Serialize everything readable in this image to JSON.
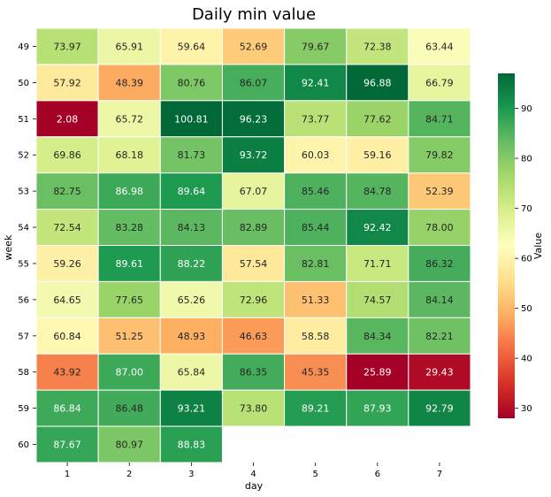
{
  "chart_data": {
    "type": "heatmap",
    "title": "Daily min value",
    "xlabel": "day",
    "ylabel": "week",
    "x_categories": [
      "1",
      "2",
      "3",
      "4",
      "5",
      "6",
      "7"
    ],
    "y_categories": [
      "49",
      "50",
      "51",
      "52",
      "53",
      "54",
      "55",
      "56",
      "57",
      "58",
      "59",
      "60"
    ],
    "values": [
      [
        73.97,
        65.91,
        59.64,
        52.69,
        79.67,
        72.38,
        63.44
      ],
      [
        57.92,
        48.39,
        80.76,
        86.07,
        92.41,
        96.88,
        66.79
      ],
      [
        2.08,
        65.72,
        100.81,
        96.23,
        73.77,
        77.62,
        84.71
      ],
      [
        69.86,
        68.18,
        81.73,
        93.72,
        60.03,
        59.16,
        79.82
      ],
      [
        82.75,
        86.98,
        89.64,
        67.07,
        85.46,
        84.78,
        52.39
      ],
      [
        72.54,
        83.28,
        84.13,
        82.89,
        85.44,
        92.42,
        78.0
      ],
      [
        59.26,
        89.61,
        88.22,
        57.54,
        82.81,
        71.71,
        86.32
      ],
      [
        64.65,
        77.65,
        65.26,
        72.96,
        51.33,
        74.57,
        84.14
      ],
      [
        60.84,
        51.25,
        48.93,
        46.63,
        58.58,
        84.34,
        82.21
      ],
      [
        43.92,
        87.0,
        65.84,
        86.35,
        45.35,
        25.89,
        29.43
      ],
      [
        86.84,
        86.48,
        93.21,
        73.8,
        89.21,
        87.93,
        92.79
      ],
      [
        87.67,
        80.97,
        88.83,
        null,
        null,
        null,
        null
      ]
    ],
    "cell_labels": [
      [
        "73.97",
        "65.91",
        "59.64",
        "52.69",
        "79.67",
        "72.38",
        "63.44"
      ],
      [
        "57.92",
        "48.39",
        "80.76",
        "86.07",
        "92.41",
        "96.88",
        "66.79"
      ],
      [
        "2.08",
        "65.72",
        "100.81",
        "96.23",
        "73.77",
        "77.62",
        "84.71"
      ],
      [
        "69.86",
        "68.18",
        "81.73",
        "93.72",
        "60.03",
        "59.16",
        "79.82"
      ],
      [
        "82.75",
        "86.98",
        "89.64",
        "67.07",
        "85.46",
        "84.78",
        "52.39"
      ],
      [
        "72.54",
        "83.28",
        "84.13",
        "82.89",
        "85.44",
        "92.42",
        "78.00"
      ],
      [
        "59.26",
        "89.61",
        "88.22",
        "57.54",
        "82.81",
        "71.71",
        "86.32"
      ],
      [
        "64.65",
        "77.65",
        "65.26",
        "72.96",
        "51.33",
        "74.57",
        "84.14"
      ],
      [
        "60.84",
        "51.25",
        "48.93",
        "46.63",
        "58.58",
        "84.34",
        "82.21"
      ],
      [
        "43.92",
        "87.00",
        "65.84",
        "86.35",
        "45.35",
        "25.89",
        "29.43"
      ],
      [
        "86.84",
        "86.48",
        "93.21",
        "73.80",
        "89.21",
        "87.93",
        "92.79"
      ],
      [
        "87.67",
        "80.97",
        "88.83",
        null,
        null,
        null,
        null
      ]
    ],
    "colorscale": "RdYlGn",
    "color_range": [
      28,
      97
    ],
    "colorbar": {
      "label": "Value",
      "ticks": [
        "30",
        "40",
        "50",
        "60",
        "70",
        "80",
        "90"
      ]
    },
    "grid": false
  }
}
